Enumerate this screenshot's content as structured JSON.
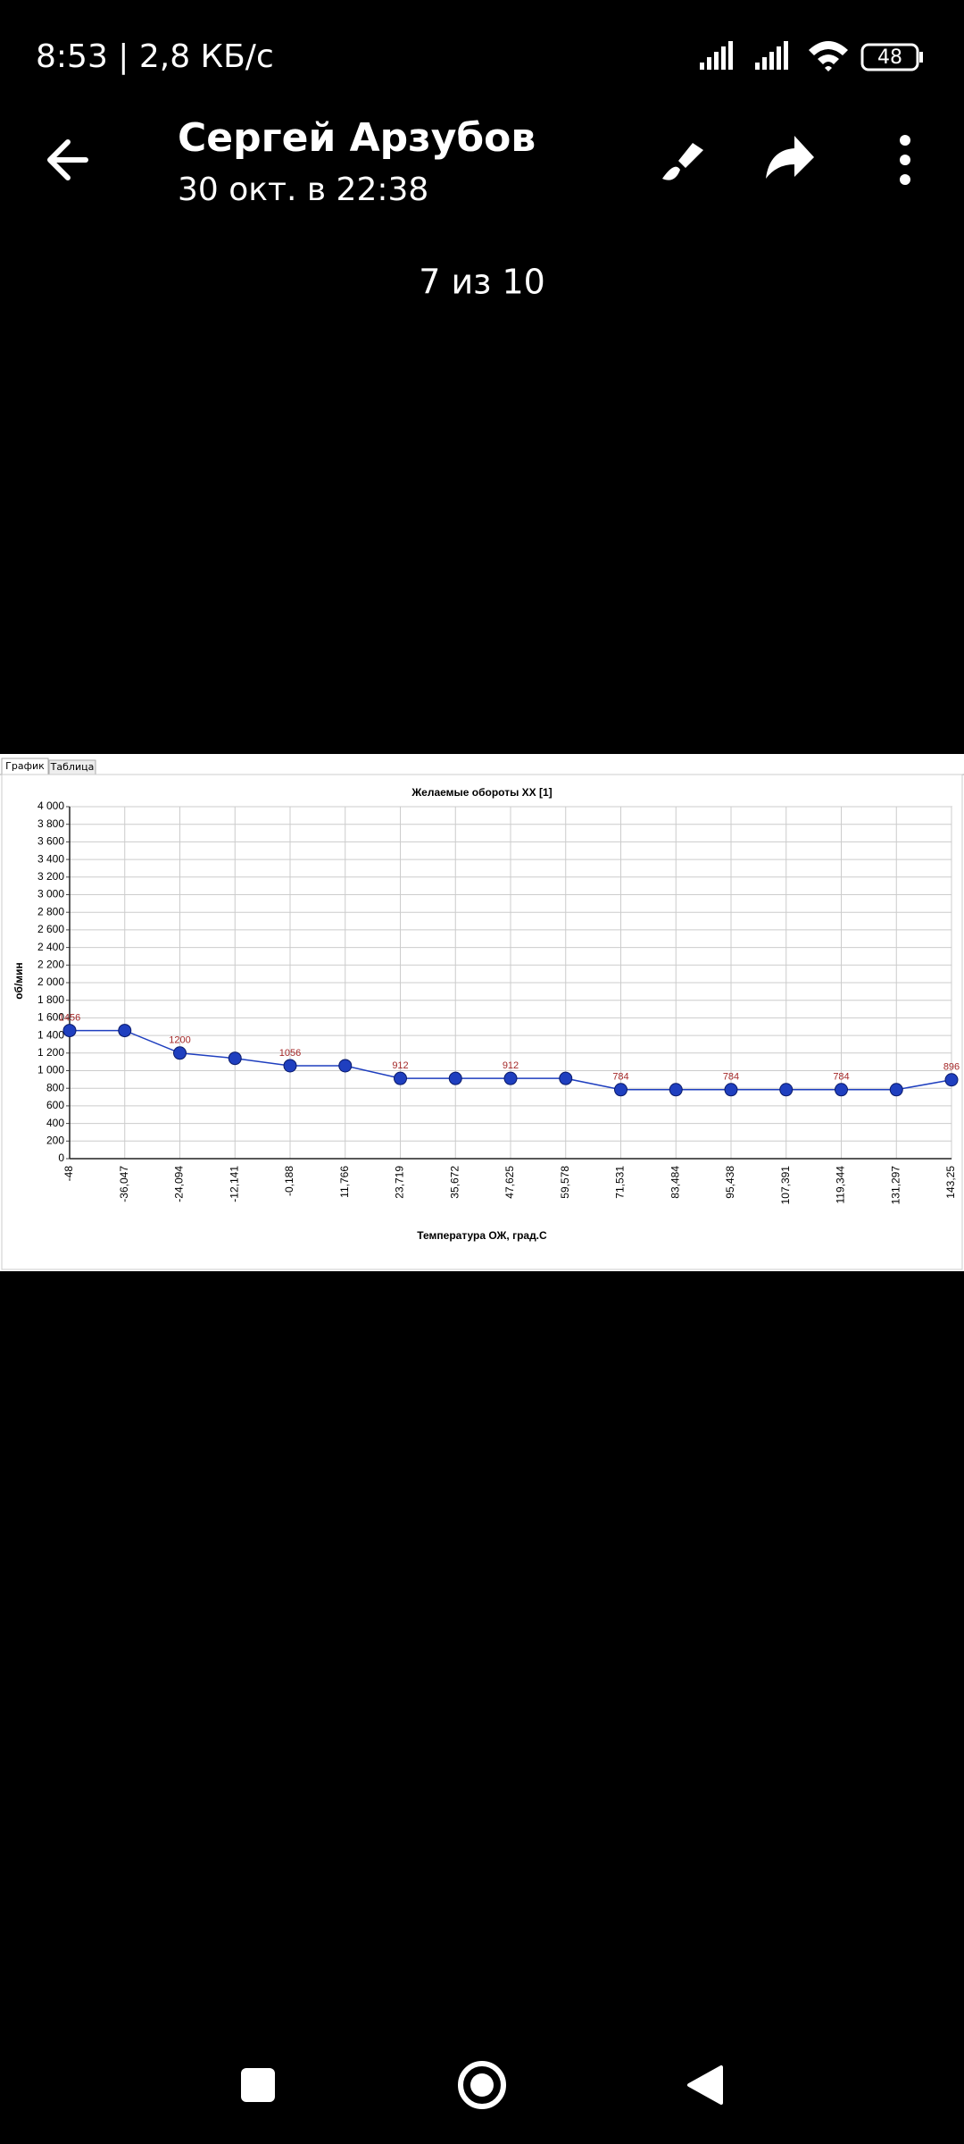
{
  "status_bar": {
    "time": "8:53 | 2,8 КБ/с",
    "battery": "48"
  },
  "header": {
    "title": "Сергей Арзубов",
    "subtitle": "30 окт. в 22:38"
  },
  "counter": "7 из 10",
  "viewer": {
    "tabs": [
      "График",
      "Таблица"
    ]
  },
  "chart_data": {
    "type": "line",
    "title": "Желаемые обороты ХХ [1]",
    "x_label": "Температура ОЖ, град.С",
    "y_label": "об/мин",
    "categories": [
      "-48",
      "-36,047",
      "-24,094",
      "-12,141",
      "-0,188",
      "11,766",
      "23,719",
      "35,672",
      "47,625",
      "59,578",
      "71,531",
      "83,484",
      "95,438",
      "107,391",
      "119,344",
      "131,297",
      "143,25"
    ],
    "series": [
      {
        "name": "Желаемые обороты ХХ [1]",
        "color": "#1f3fbf",
        "values": [
          1456,
          1456,
          1200,
          1140,
          1056,
          1056,
          912,
          912,
          912,
          912,
          784,
          784,
          784,
          784,
          784,
          784,
          896
        ]
      }
    ],
    "data_labels_every": 2,
    "data_label_color": "#a52a2a",
    "ylim": [
      0,
      4000
    ],
    "yticks": [
      0,
      200,
      400,
      600,
      800,
      {
        "value": 1000,
        "label": "1 000"
      },
      {
        "value": 1200,
        "label": "1 200"
      },
      {
        "value": 1400,
        "label": "1 400"
      },
      {
        "value": 1600,
        "label": "1 600"
      },
      {
        "value": 1800,
        "label": "1 800"
      },
      {
        "value": 2000,
        "label": "2 000"
      },
      {
        "value": 2200,
        "label": "2 200"
      },
      {
        "value": 2400,
        "label": "2 400"
      },
      {
        "value": 2600,
        "label": "2 600"
      },
      {
        "value": 2800,
        "label": "2 800"
      },
      {
        "value": 3000,
        "label": "3 000"
      },
      {
        "value": 3200,
        "label": "3 200"
      },
      {
        "value": 3400,
        "label": "3 400"
      },
      {
        "value": 3600,
        "label": "3 600"
      },
      {
        "value": 3800,
        "label": "3 800"
      },
      {
        "value": 4000,
        "label": "4 000"
      }
    ],
    "grid": true
  }
}
